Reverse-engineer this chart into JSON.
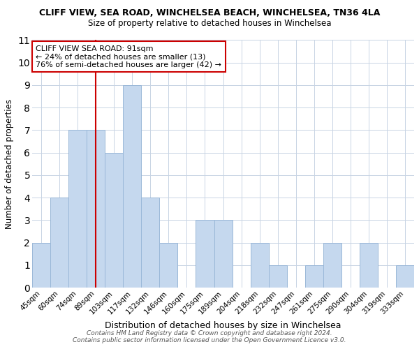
{
  "title": "CLIFF VIEW, SEA ROAD, WINCHELSEA BEACH, WINCHELSEA, TN36 4LA",
  "subtitle": "Size of property relative to detached houses in Winchelsea",
  "xlabel": "Distribution of detached houses by size in Winchelsea",
  "ylabel": "Number of detached properties",
  "bin_labels": [
    "45sqm",
    "60sqm",
    "74sqm",
    "89sqm",
    "103sqm",
    "117sqm",
    "132sqm",
    "146sqm",
    "160sqm",
    "175sqm",
    "189sqm",
    "204sqm",
    "218sqm",
    "232sqm",
    "247sqm",
    "261sqm",
    "275sqm",
    "290sqm",
    "304sqm",
    "319sqm",
    "333sqm"
  ],
  "bar_values": [
    2,
    4,
    7,
    7,
    6,
    9,
    4,
    2,
    0,
    3,
    3,
    0,
    2,
    1,
    0,
    1,
    2,
    0,
    2,
    0,
    1
  ],
  "bar_color": "#c5d8ee",
  "bar_edge_color": "#9ab8d8",
  "vline_x_index": 3,
  "vline_color": "#cc0000",
  "annotation_text": "CLIFF VIEW SEA ROAD: 91sqm\n← 24% of detached houses are smaller (13)\n76% of semi-detached houses are larger (42) →",
  "annotation_box_color": "#ffffff",
  "annotation_box_edge_color": "#cc0000",
  "ylim": [
    0,
    11
  ],
  "yticks": [
    0,
    1,
    2,
    3,
    4,
    5,
    6,
    7,
    8,
    9,
    10,
    11
  ],
  "footer": "Contains HM Land Registry data © Crown copyright and database right 2024.\nContains public sector information licensed under the Open Government Licence v3.0.",
  "background_color": "#ffffff",
  "grid_color": "#c8d4e4"
}
